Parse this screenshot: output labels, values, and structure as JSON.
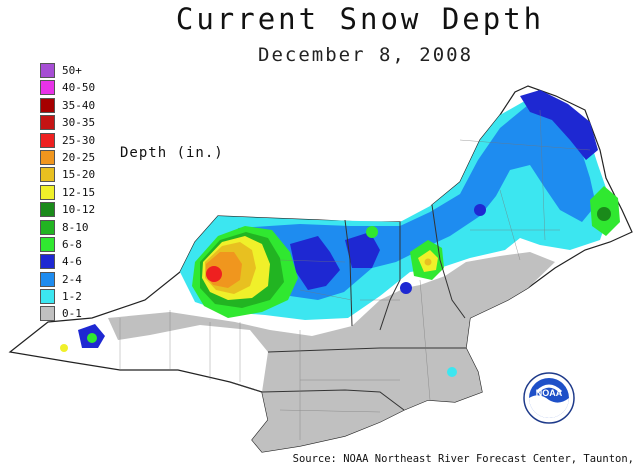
{
  "title": "Current Snow Depth",
  "date": "December  8, 2008",
  "legend": {
    "title": "Depth (in.)",
    "items": [
      {
        "label": "50+",
        "color": "#a64ed4"
      },
      {
        "label": "40-50",
        "color": "#e832e8"
      },
      {
        "label": "35-40",
        "color": "#a60000"
      },
      {
        "label": "30-35",
        "color": "#c41414"
      },
      {
        "label": "25-30",
        "color": "#ee2020"
      },
      {
        "label": "20-25",
        "color": "#f0961e"
      },
      {
        "label": "15-20",
        "color": "#e8c020"
      },
      {
        "label": "12-15",
        "color": "#f0f02a"
      },
      {
        "label": "10-12",
        "color": "#1a8a1a"
      },
      {
        "label": "8-10",
        "color": "#22b422"
      },
      {
        "label": "6-8",
        "color": "#30e830"
      },
      {
        "label": "4-6",
        "color": "#1e28d2"
      },
      {
        "label": "2-4",
        "color": "#1e8cf0"
      },
      {
        "label": "1-2",
        "color": "#3ce6f0"
      },
      {
        "label": "0-1",
        "color": "#c0c0c0"
      }
    ]
  },
  "logo": {
    "text": "NOAA"
  },
  "source": "Source: NOAA Northeast River Forecast Center, Taunton,"
}
